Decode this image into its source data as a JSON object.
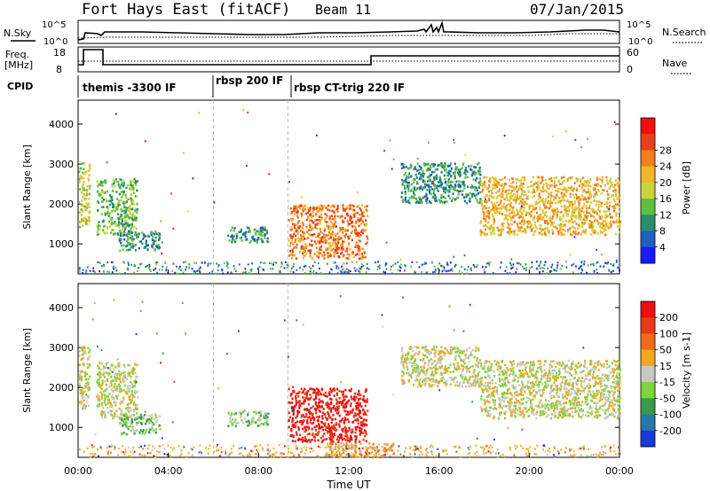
{
  "header": {
    "station": "Fort Hays East (fitACF)",
    "beam": "Beam 11",
    "date": "07/Jan/2015"
  },
  "top_panels": {
    "nsky_label": "N.Sky",
    "nsky_ticks": [
      "10^5",
      "10^0"
    ],
    "nsearch_label": "N.Search",
    "nsearch_ticks": [
      "10^5",
      "10^0"
    ],
    "freq_label": "Freq.",
    "freq_unit": "[MHz]",
    "freq_ticks": [
      "18",
      "8"
    ],
    "nave_label": "Nave",
    "nave_ticks": [
      "60",
      "0"
    ],
    "cpid_label": "CPID",
    "cpid_segments": [
      {
        "label": "themis -3300 IF",
        "start_hour": 0,
        "end_hour": 6
      },
      {
        "label": "rbsp 200 IF",
        "start_hour": 6,
        "end_hour": 9.3
      },
      {
        "label": "rbsp CT-trig 220 IF",
        "start_hour": 9.3,
        "end_hour": 24
      }
    ]
  },
  "chart_data": [
    {
      "type": "heatmap",
      "quantity": "power",
      "xlabel": "",
      "ylabel": "Slant Range [km]",
      "xlim": [
        0,
        24
      ],
      "ylim": [
        250,
        4600
      ],
      "yticks": [
        "1000",
        "2000",
        "3000",
        "4000"
      ],
      "colorbar": {
        "label": "Power [dB]",
        "ticks": [
          "4",
          "8",
          "12",
          "16",
          "20",
          "24",
          "28"
        ],
        "colors": [
          "#1a1aff",
          "#1f5fbf",
          "#2b8c6c",
          "#5fbf3f",
          "#c8d63c",
          "#f2b62a",
          "#f07f1c",
          "#e8401a",
          "#ee1111"
        ]
      },
      "regions": [
        {
          "t0": 0.0,
          "t1": 0.5,
          "r0": 1450,
          "r1": 3050,
          "level": 4
        },
        {
          "t0": 0.8,
          "t1": 2.6,
          "r0": 1250,
          "r1": 2650,
          "level": 3
        },
        {
          "t0": 1.8,
          "t1": 3.6,
          "r0": 850,
          "r1": 1350,
          "level": 2
        },
        {
          "t0": 6.6,
          "t1": 8.4,
          "r0": 1050,
          "r1": 1450,
          "level": 2
        },
        {
          "t0": 9.3,
          "t1": 12.8,
          "r0": 650,
          "r1": 2000,
          "level": 6
        },
        {
          "t0": 14.3,
          "t1": 17.8,
          "r0": 2050,
          "r1": 3050,
          "level": 2
        },
        {
          "t0": 17.8,
          "t1": 24.0,
          "r0": 1250,
          "r1": 2700,
          "level": 5
        }
      ]
    },
    {
      "type": "heatmap",
      "quantity": "velocity",
      "xlabel": "Time UT",
      "ylabel": "Slant Range [km]",
      "xlim": [
        0,
        24
      ],
      "ylim": [
        250,
        4600
      ],
      "xticks": [
        "00:00",
        "04:00",
        "08:00",
        "12:00",
        "16:00",
        "20:00",
        "00:00"
      ],
      "yticks": [
        "1000",
        "2000",
        "3000",
        "4000"
      ],
      "colorbar": {
        "label": "Velocity [m s-1]",
        "ticks": [
          "200",
          "100",
          "50",
          "15",
          "-15",
          "-50",
          "-100",
          "-200"
        ],
        "colors": [
          "#1a3ad6",
          "#2a78a8",
          "#3a9a4a",
          "#7ed43a",
          "#c8c8c0",
          "#f2a822",
          "#f06a1a",
          "#e83a14",
          "#ee0f0f"
        ]
      },
      "regions": [
        {
          "t0": 0.0,
          "t1": 0.5,
          "r0": 1450,
          "r1": 3050,
          "level": 4
        },
        {
          "t0": 0.8,
          "t1": 2.6,
          "r0": 1250,
          "r1": 2650,
          "level": 4
        },
        {
          "t0": 1.8,
          "t1": 3.6,
          "r0": 850,
          "r1": 1350,
          "level": 3
        },
        {
          "t0": 6.6,
          "t1": 8.4,
          "r0": 1050,
          "r1": 1450,
          "level": 3
        },
        {
          "t0": 9.3,
          "t1": 12.8,
          "r0": 650,
          "r1": 2000,
          "level": 8
        },
        {
          "t0": 11.0,
          "t1": 14.0,
          "r0": 280,
          "r1": 650,
          "level": 5
        },
        {
          "t0": 14.3,
          "t1": 17.8,
          "r0": 2050,
          "r1": 3050,
          "level": 4
        },
        {
          "t0": 17.8,
          "t1": 24.0,
          "r0": 1250,
          "r1": 2700,
          "level": 4
        }
      ]
    }
  ]
}
